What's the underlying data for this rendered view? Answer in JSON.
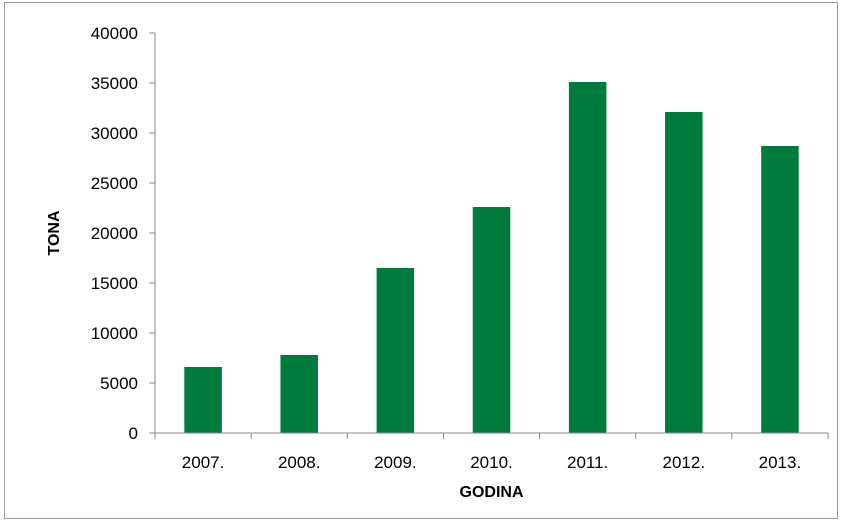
{
  "chart_data": {
    "type": "bar",
    "categories": [
      "2007.",
      "2008.",
      "2009.",
      "2010.",
      "2011.",
      "2012.",
      "2013."
    ],
    "values": [
      6600,
      7800,
      16500,
      22600,
      35100,
      32100,
      28700
    ],
    "xlabel": "GODINA",
    "ylabel": "TONA",
    "ylim": [
      0,
      40000
    ],
    "yticks": [
      0,
      5000,
      10000,
      15000,
      20000,
      25000,
      30000,
      35000,
      40000
    ],
    "grid": false,
    "legend": "none",
    "bar_color": "#007a3d"
  }
}
